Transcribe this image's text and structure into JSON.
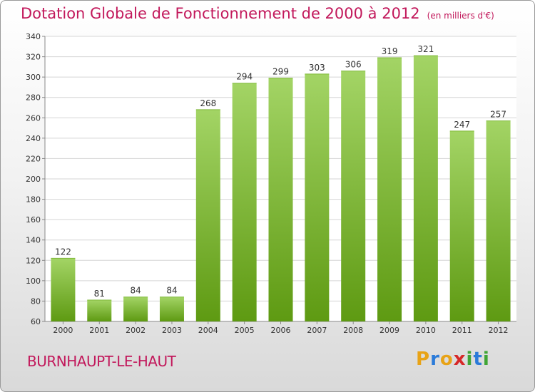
{
  "title": "Dotation Globale de Fonctionnement de 2000 à 2012",
  "unit": "(en milliers d'€)",
  "commune": "BURNHAUPT-LE-HAUT",
  "logo": {
    "letters": [
      "P",
      "r",
      "o",
      "x",
      "i",
      "t",
      "i"
    ],
    "colors": [
      "#e8a317",
      "#2b7bd9",
      "#e8a317",
      "#d62828",
      "#3fa535",
      "#2b7bd9",
      "#3fa535"
    ]
  },
  "colors": {
    "bar_top": "#a3d465",
    "bar_bottom": "#5e9a12",
    "title": "#c2185b",
    "grid": "#d5d5d5"
  },
  "chart_data": {
    "type": "bar",
    "title": "Dotation Globale de Fonctionnement de 2000 à 2012",
    "subtitle": "(en milliers d'€)",
    "categories": [
      "2000",
      "2001",
      "2002",
      "2003",
      "2004",
      "2005",
      "2006",
      "2007",
      "2008",
      "2009",
      "2010",
      "2011",
      "2012"
    ],
    "values": [
      122,
      81,
      84,
      84,
      268,
      294,
      299,
      303,
      306,
      319,
      321,
      247,
      257
    ],
    "ylim": [
      60,
      340
    ],
    "yticks": [
      60,
      80,
      100,
      120,
      140,
      160,
      180,
      200,
      220,
      240,
      260,
      280,
      300,
      320,
      340
    ],
    "grid": true,
    "legend": "none"
  }
}
